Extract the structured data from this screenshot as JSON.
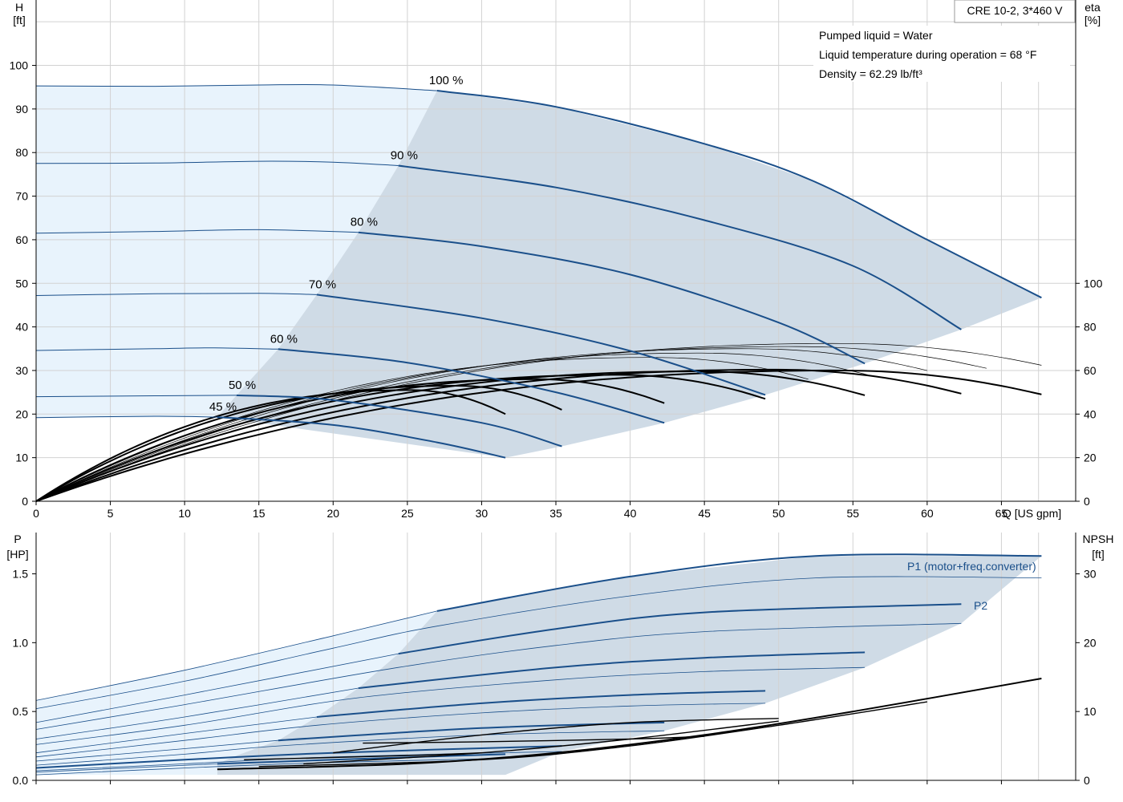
{
  "model_label": "CRE 10-2, 3*460 V",
  "info_lines": [
    "Pumped liquid = Water",
    "Liquid temperature during operation = 68 °F",
    "Density = 62.29 lb/ft³"
  ],
  "colors": {
    "curve_blue": "#1a4f8a",
    "area_light": "#e8f3fc",
    "area_dark": "#cfdbe6",
    "grid": "#d2d2d2"
  },
  "chart_data": [
    {
      "type": "line",
      "name": "head-efficiency",
      "xlabel": "Q [US gpm]",
      "ylabel": [
        "H",
        "[ft]"
      ],
      "y2label": [
        "eta",
        "[%]"
      ],
      "xlim": [
        0,
        70
      ],
      "ylim": [
        0,
        115
      ],
      "y2lim": [
        0,
        115
      ],
      "xticks": [
        0,
        5,
        10,
        15,
        20,
        25,
        30,
        35,
        40,
        45,
        50,
        55,
        60,
        65
      ],
      "yticks": [
        0,
        10,
        20,
        30,
        40,
        50,
        60,
        70,
        80,
        90,
        100
      ],
      "y2ticks": [
        0,
        20,
        40,
        60,
        80,
        100
      ],
      "grid": true,
      "head_curves": [
        {
          "label": "100 %",
          "points": [
            [
              0,
              95.3
            ],
            [
              8,
              95.2
            ],
            [
              15,
              95.5
            ],
            [
              20,
              95.5
            ],
            [
              27,
              94.2
            ],
            [
              35,
              90.5
            ],
            [
              45,
              82
            ],
            [
              52.3,
              73.5
            ],
            [
              60,
              60
            ],
            [
              67.7,
              46.7
            ]
          ]
        },
        {
          "label": "90 %",
          "points": [
            [
              0,
              77.5
            ],
            [
              8,
              77.6
            ],
            [
              15,
              78
            ],
            [
              20,
              77.8
            ],
            [
              24.4,
              77
            ],
            [
              35,
              72
            ],
            [
              45,
              64.5
            ],
            [
              55,
              54
            ],
            [
              62.3,
              39.4
            ]
          ]
        },
        {
          "label": "80 %",
          "points": [
            [
              0,
              61.5
            ],
            [
              8,
              61.9
            ],
            [
              15,
              62.3
            ],
            [
              21.7,
              61.7
            ],
            [
              30,
              58.5
            ],
            [
              40,
              52
            ],
            [
              50,
              41
            ],
            [
              55.8,
              31.6
            ]
          ]
        },
        {
          "label": "70 %",
          "points": [
            [
              0,
              47.2
            ],
            [
              8,
              47.6
            ],
            [
              15,
              47.7
            ],
            [
              18.9,
              47.4
            ],
            [
              30,
              42
            ],
            [
              40,
              34.5
            ],
            [
              49.1,
              24.4
            ]
          ]
        },
        {
          "label": "60 %",
          "points": [
            [
              0,
              34.6
            ],
            [
              8,
              35
            ],
            [
              12,
              35.2
            ],
            [
              16.3,
              34.9
            ],
            [
              25,
              31.8
            ],
            [
              35,
              25
            ],
            [
              42.3,
              18
            ]
          ]
        },
        {
          "label": "50 %",
          "points": [
            [
              0,
              24
            ],
            [
              8,
              24.2
            ],
            [
              13.5,
              24.3
            ],
            [
              20,
              23.2
            ],
            [
              30,
              18
            ],
            [
              35.4,
              12.6
            ]
          ]
        },
        {
          "label": "45 %",
          "points": [
            [
              0,
              19.2
            ],
            [
              8,
              19.5
            ],
            [
              12.2,
              19.3
            ],
            [
              20,
              17.5
            ],
            [
              27,
              13.5
            ],
            [
              31.6,
              10
            ]
          ]
        }
      ],
      "efficiency_curves": [
        {
          "end": [
            31.6,
            20
          ],
          "thick": true
        },
        {
          "end": [
            35.4,
            21
          ],
          "thick": true
        },
        {
          "end": [
            42.3,
            22.5
          ],
          "thick": true
        },
        {
          "end": [
            49.1,
            23.5
          ],
          "thick": true
        },
        {
          "end": [
            55.8,
            24.3
          ],
          "thick": true
        },
        {
          "end": [
            62.3,
            24.7
          ],
          "thick": true
        },
        {
          "end": [
            67.7,
            24.5
          ],
          "thick": true
        },
        {
          "end": [
            52,
            28
          ],
          "thick": false
        },
        {
          "end": [
            56,
            29
          ],
          "thick": false
        },
        {
          "end": [
            60,
            30
          ],
          "thick": false
        },
        {
          "end": [
            64,
            30.5
          ],
          "thick": false
        },
        {
          "end": [
            67.7,
            31.2
          ],
          "thick": false
        }
      ]
    },
    {
      "type": "line",
      "name": "power-npsh",
      "xlim": [
        0,
        70
      ],
      "ylabel": [
        "P",
        "[HP]"
      ],
      "y2label": [
        "NPSH",
        "[ft]"
      ],
      "ylim": [
        0,
        1.8
      ],
      "y2lim": [
        0,
        36
      ],
      "yticks": [
        0.0,
        0.5,
        1.0,
        1.5
      ],
      "yticklabels": [
        "0.0",
        "0.5",
        "1.0",
        "1.5"
      ],
      "y2ticks": [
        0,
        10,
        20,
        30
      ],
      "grid": true,
      "series_labels": {
        "p1": "P1 (motor+freq.converter)",
        "p2": "P2"
      },
      "p1_curves": [
        {
          "points": [
            [
              0,
              0.58
            ],
            [
              10,
              0.8
            ],
            [
              20,
              1.05
            ],
            [
              27,
              1.23
            ],
            [
              40,
              1.48
            ],
            [
              52.5,
              1.63
            ],
            [
              67.7,
              1.63
            ]
          ]
        },
        {
          "points": [
            [
              0,
              0.42
            ],
            [
              10,
              0.62
            ],
            [
              24.4,
              0.92
            ],
            [
              35,
              1.1
            ],
            [
              45,
              1.22
            ],
            [
              62.3,
              1.28
            ]
          ]
        },
        {
          "points": [
            [
              0,
              0.3
            ],
            [
              10,
              0.46
            ],
            [
              21.7,
              0.67
            ],
            [
              35,
              0.82
            ],
            [
              45,
              0.89
            ],
            [
              55.8,
              0.93
            ]
          ]
        },
        {
          "points": [
            [
              0,
              0.2
            ],
            [
              10,
              0.34
            ],
            [
              18.9,
              0.46
            ],
            [
              30,
              0.56
            ],
            [
              40,
              0.62
            ],
            [
              49.1,
              0.65
            ]
          ]
        },
        {
          "points": [
            [
              0,
              0.14
            ],
            [
              10,
              0.23
            ],
            [
              16.3,
              0.29
            ],
            [
              30,
              0.38
            ],
            [
              42.3,
              0.42
            ]
          ]
        },
        {
          "points": [
            [
              0,
              0.09
            ],
            [
              10,
              0.15
            ],
            [
              20,
              0.2
            ],
            [
              35.4,
              0.25
            ]
          ]
        },
        {
          "points": [
            [
              0,
              0.06
            ],
            [
              12.2,
              0.12
            ],
            [
              20,
              0.15
            ],
            [
              31.6,
              0.19
            ]
          ]
        }
      ],
      "p2_curves": [
        {
          "points": [
            [
              0,
              0.52
            ],
            [
              10,
              0.72
            ],
            [
              20,
              0.96
            ],
            [
              27,
              1.12
            ],
            [
              40,
              1.34
            ],
            [
              52.5,
              1.47
            ],
            [
              67.7,
              1.47
            ]
          ]
        },
        {
          "points": [
            [
              0,
              0.37
            ],
            [
              10,
              0.55
            ],
            [
              24.4,
              0.82
            ],
            [
              35,
              0.98
            ],
            [
              45,
              1.08
            ],
            [
              62.3,
              1.14
            ]
          ]
        },
        {
          "points": [
            [
              0,
              0.26
            ],
            [
              10,
              0.4
            ],
            [
              21.7,
              0.6
            ],
            [
              35,
              0.73
            ],
            [
              45,
              0.79
            ],
            [
              55.8,
              0.82
            ]
          ]
        },
        {
          "points": [
            [
              0,
              0.17
            ],
            [
              10,
              0.29
            ],
            [
              18.9,
              0.4
            ],
            [
              30,
              0.49
            ],
            [
              40,
              0.54
            ],
            [
              49.1,
              0.56
            ]
          ]
        },
        {
          "points": [
            [
              0,
              0.11
            ],
            [
              10,
              0.19
            ],
            [
              16.3,
              0.25
            ],
            [
              30,
              0.33
            ],
            [
              42.3,
              0.36
            ]
          ]
        },
        {
          "points": [
            [
              0,
              0.07
            ],
            [
              10,
              0.12
            ],
            [
              20,
              0.17
            ],
            [
              35.4,
              0.21
            ]
          ]
        },
        {
          "points": [
            [
              0,
              0.04
            ],
            [
              12.2,
              0.1
            ],
            [
              20,
              0.13
            ],
            [
              31.6,
              0.16
            ]
          ]
        }
      ],
      "npsh_curves": [
        {
          "points": [
            [
              12.2,
              0.08
            ],
            [
              25,
              0.12
            ],
            [
              35,
              0.2
            ],
            [
              45,
              0.33
            ],
            [
              55,
              0.5
            ],
            [
              67.7,
              0.74
            ]
          ]
        },
        {
          "points": [
            [
              15,
              0.1
            ],
            [
              30,
              0.15
            ],
            [
              40,
              0.25
            ],
            [
              50,
              0.4
            ],
            [
              60,
              0.57
            ]
          ]
        },
        {
          "points": [
            [
              18,
              0.12
            ],
            [
              30,
              0.2
            ],
            [
              40,
              0.3
            ],
            [
              50,
              0.43
            ]
          ]
        },
        {
          "points": [
            [
              20,
              0.2
            ],
            [
              30,
              0.33
            ],
            [
              40,
              0.42
            ],
            [
              50,
              0.45
            ]
          ]
        },
        {
          "points": [
            [
              22,
              0.27
            ],
            [
              30,
              0.28
            ],
            [
              40,
              0.3
            ],
            [
              45,
              0.32
            ]
          ]
        },
        {
          "points": [
            [
              14,
              0.15
            ],
            [
              25,
              0.18
            ],
            [
              30,
              0.2
            ]
          ]
        }
      ]
    }
  ]
}
